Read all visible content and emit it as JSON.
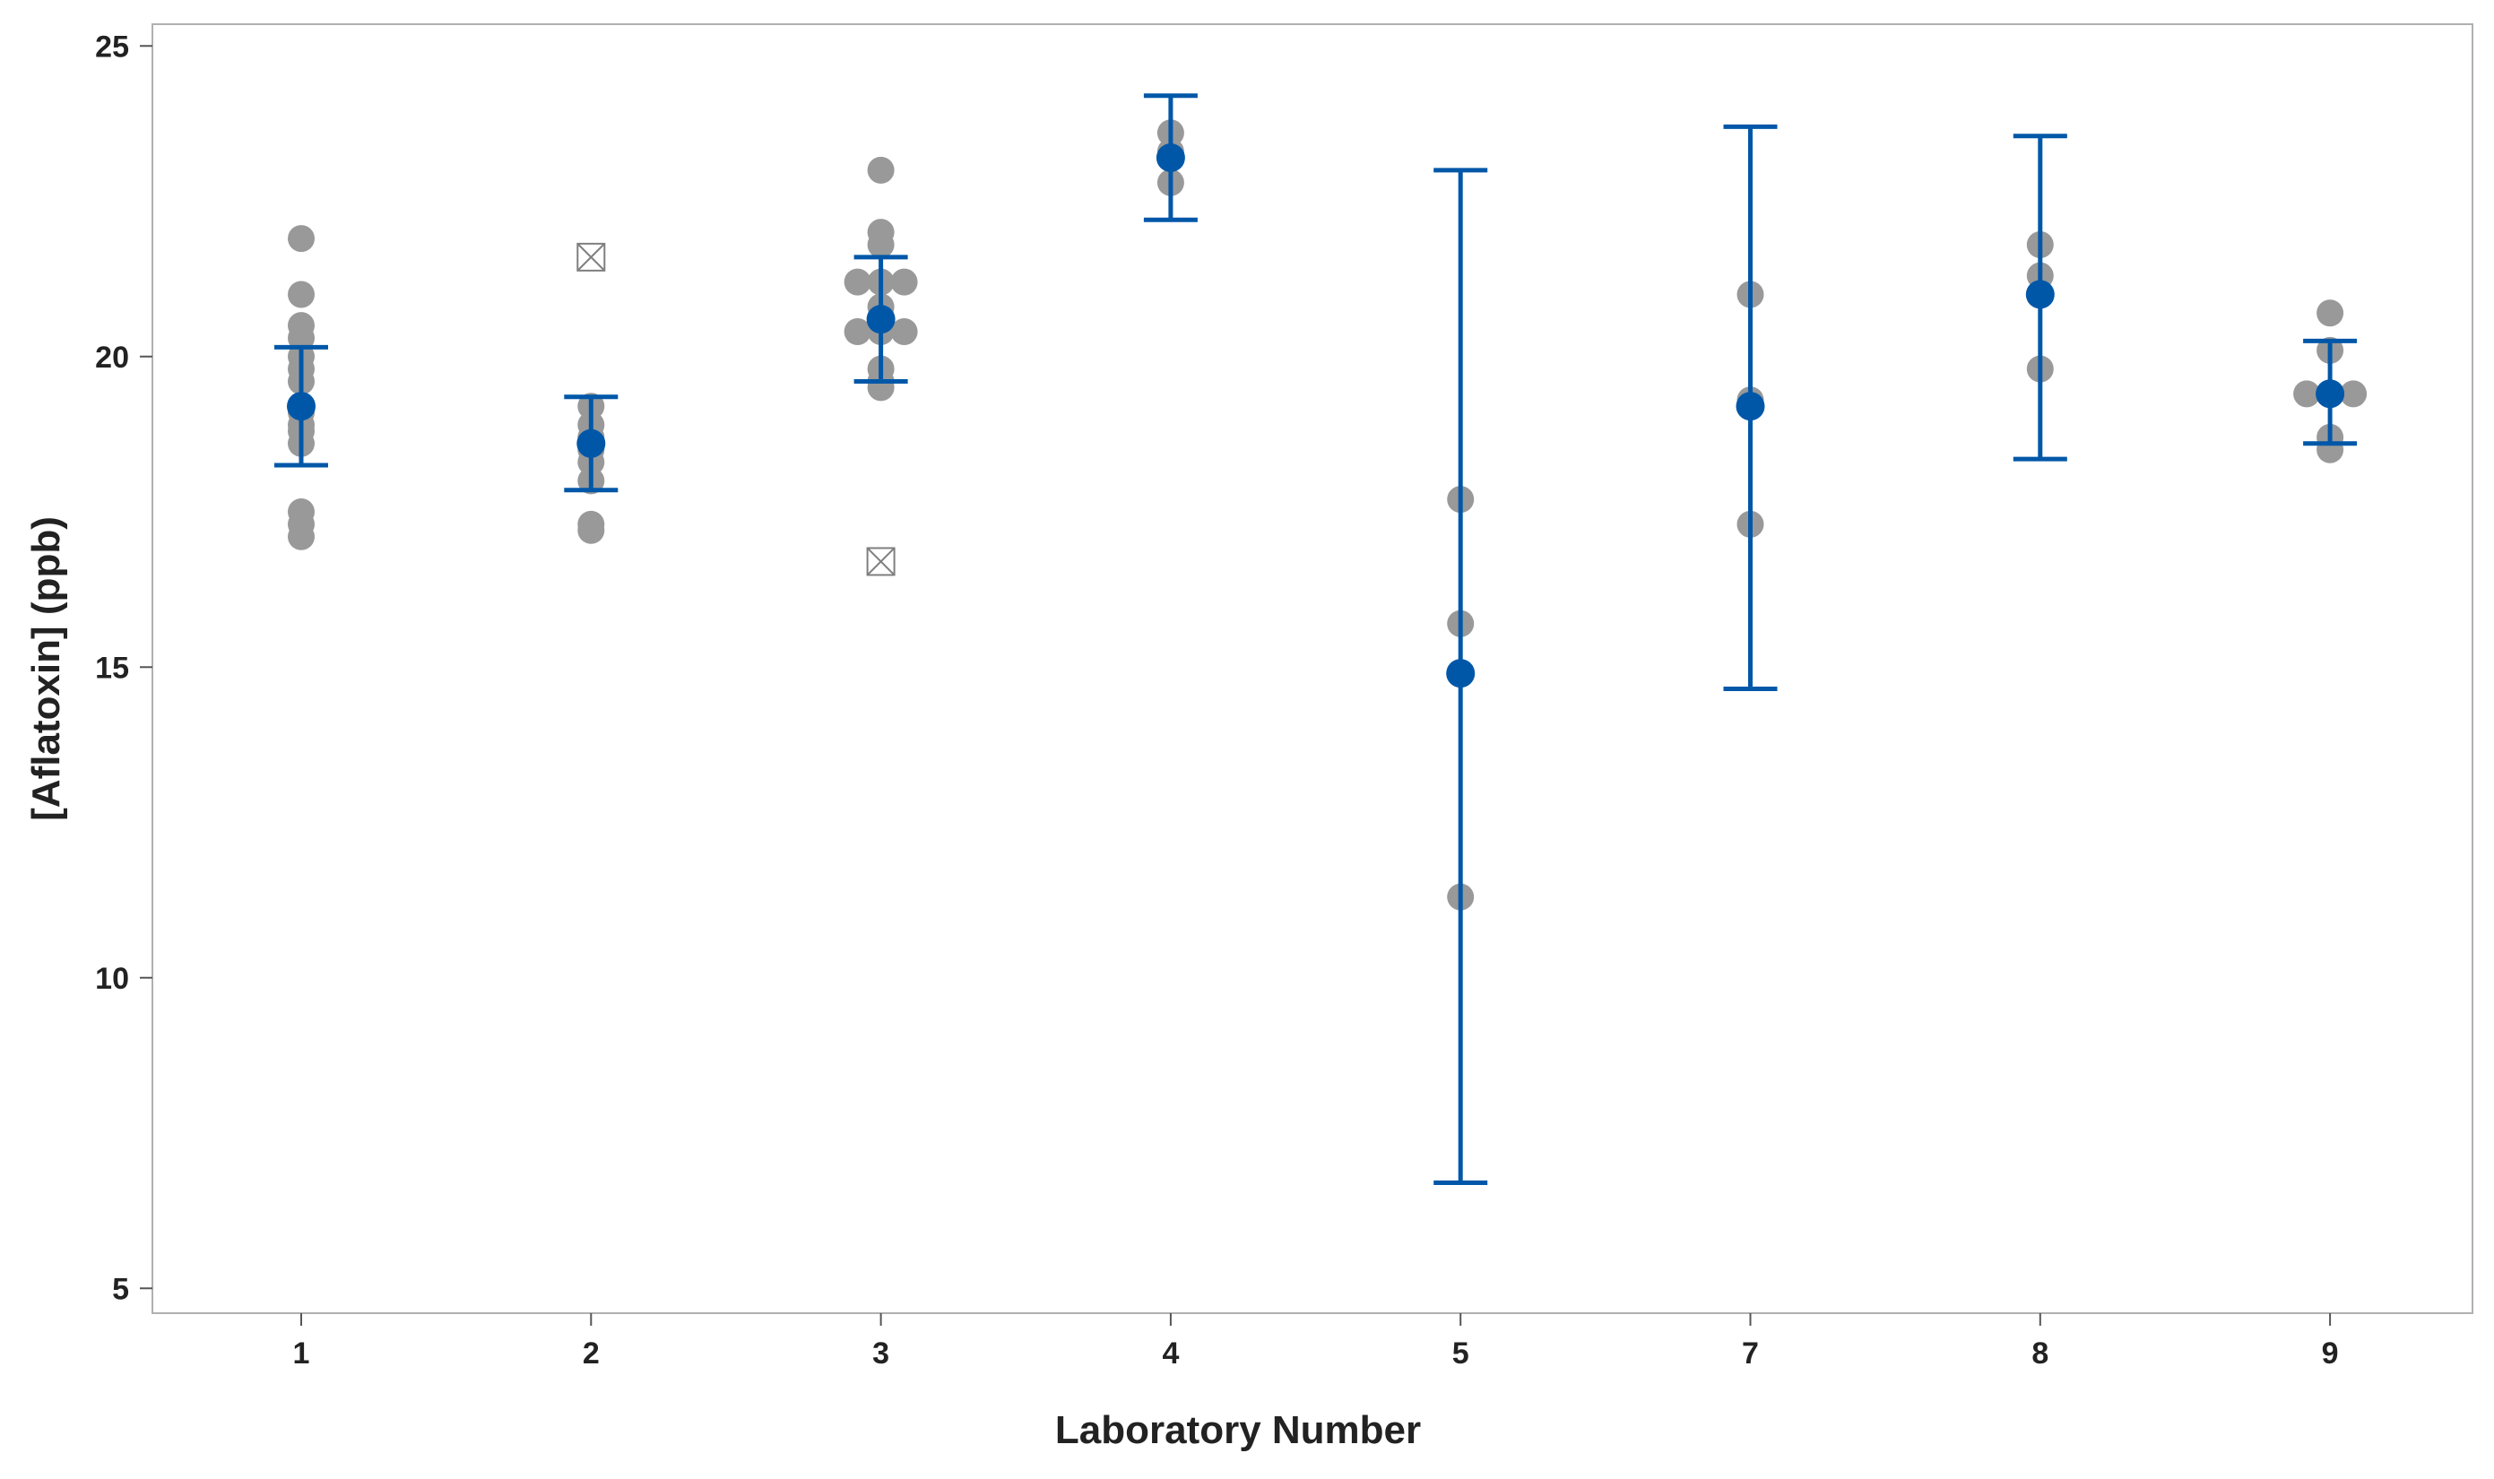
{
  "chart_data": {
    "type": "scatter",
    "xlabel": "Laboratory Number",
    "ylabel": "[Aflatoxin] (ppb)",
    "categories": [
      "1",
      "2",
      "3",
      "4",
      "5",
      "7",
      "8",
      "9"
    ],
    "ylim": [
      4.6,
      25.35
    ],
    "yticks": [
      5,
      10,
      15,
      20,
      25
    ],
    "grid": false,
    "legend": "none",
    "colors": {
      "points": "#999999",
      "mean": "#0057A8",
      "error_bar": "#0057A8",
      "outlier": "#7f7f7f",
      "frame": "#b0b0b0"
    },
    "groups": [
      {
        "category": "1",
        "points": [
          21.9,
          21.0,
          20.5,
          20.3,
          20.0,
          19.8,
          19.6,
          19.1,
          18.9,
          18.8,
          18.6,
          17.5,
          17.3,
          17.1
        ],
        "mean": 19.2,
        "ci": [
          18.25,
          20.15
        ]
      },
      {
        "category": "2",
        "points": [
          19.2,
          18.9,
          18.7,
          18.5,
          18.3,
          18.0,
          17.3,
          17.2
        ],
        "outliers": [
          21.6
        ],
        "mean": 18.6,
        "ci": [
          17.85,
          19.35
        ]
      },
      {
        "category": "3",
        "points": [
          23.0,
          22.0,
          21.8,
          21.2,
          21.2,
          21.2,
          20.8,
          20.4,
          20.4,
          20.4,
          19.8,
          19.6,
          19.5
        ],
        "outliers": [
          16.7
        ],
        "mean": 20.6,
        "ci": [
          19.6,
          21.6
        ]
      },
      {
        "category": "4",
        "points": [
          23.6,
          23.3,
          22.8
        ],
        "mean": 23.2,
        "ci": [
          22.2,
          24.2
        ]
      },
      {
        "category": "5",
        "points": [
          17.7,
          15.7,
          11.3
        ],
        "mean": 14.9,
        "ci": [
          6.7,
          23.0
        ]
      },
      {
        "category": "7",
        "points": [
          21.0,
          19.3,
          17.3
        ],
        "mean": 19.2,
        "ci": [
          14.65,
          23.7
        ]
      },
      {
        "category": "8",
        "points": [
          21.8,
          21.3,
          19.8
        ],
        "mean": 21.0,
        "ci": [
          18.35,
          23.55
        ]
      },
      {
        "category": "9",
        "points": [
          20.7,
          20.1,
          19.4,
          19.4,
          19.4,
          18.7,
          18.5
        ],
        "mean": 19.4,
        "ci": [
          18.6,
          20.25
        ]
      }
    ]
  }
}
